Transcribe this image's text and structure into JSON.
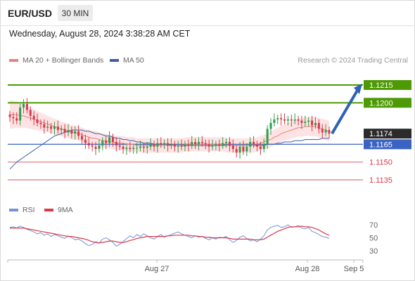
{
  "header": {
    "symbol": "EUR/USD",
    "timeframe": "30 MIN",
    "datetime": "Wednesday, August 28, 2024 3:38:28 AM CET"
  },
  "legend": {
    "ma20_label": "MA 20 + Bollinger Bands",
    "ma50_label": "MA 50",
    "credit": "Research © 2024 Trading Central"
  },
  "rsi_legend": {
    "rsi_label": "RSI",
    "ma_label": "9MA"
  },
  "colors": {
    "bullish": "#2f9e4a",
    "bearish": "#d9394a",
    "ma20": "#e8807f",
    "bollinger_fill": "#fde3e3",
    "ma50": "#3a5ea8",
    "green_level": "#4e9a06",
    "blue_level": "#3a63c4",
    "red_level": "#e57373",
    "current": "#2b2b2b",
    "arrow": "#2e62b3",
    "rsi": "#7592d6",
    "rsi_ma": "#d9394a"
  },
  "chart_data": {
    "type": "candlestick",
    "symbol": "EUR/USD",
    "timeframe": "30 MIN",
    "x_ticks": [
      "Aug 27",
      "Aug 28",
      "Sep 5"
    ],
    "price_levels": [
      {
        "price": 1.1215,
        "label": "1.1215",
        "kind": "resistance",
        "style": "green"
      },
      {
        "price": 1.12,
        "label": "1.1200",
        "kind": "resistance",
        "style": "green"
      },
      {
        "price": 1.1174,
        "label": "1.1174",
        "kind": "current",
        "style": "dark"
      },
      {
        "price": 1.1165,
        "label": "1.1165",
        "kind": "pivot",
        "style": "blue"
      },
      {
        "price": 1.115,
        "label": "1.1150",
        "kind": "support",
        "style": "red"
      },
      {
        "price": 1.1135,
        "label": "1.1135",
        "kind": "support",
        "style": "red"
      }
    ],
    "candles_close": [
      1.1188,
      1.1187,
      1.1185,
      1.1196,
      1.1199,
      1.1194,
      1.1189,
      1.1186,
      1.1183,
      1.1182,
      1.1179,
      1.118,
      1.1178,
      1.118,
      1.1177,
      1.1178,
      1.1175,
      1.1177,
      1.1174,
      1.1176,
      1.1172,
      1.1169,
      1.1166,
      1.1164,
      1.1163,
      1.1161,
      1.1164,
      1.1168,
      1.1166,
      1.1171,
      1.1167,
      1.1164,
      1.1163,
      1.1161,
      1.1162,
      1.1161,
      1.1162,
      1.1162,
      1.1163,
      1.1162,
      1.1163,
      1.1165,
      1.1163,
      1.1166,
      1.1165,
      1.1166,
      1.1164,
      1.1165,
      1.1163,
      1.1164,
      1.1163,
      1.1165,
      1.1164,
      1.1167,
      1.1165,
      1.1167,
      1.1166,
      1.1165,
      1.1163,
      1.1164,
      1.1165,
      1.1164,
      1.1166,
      1.1167,
      1.1164,
      1.1161,
      1.1158,
      1.1163,
      1.1159,
      1.1163,
      1.1167,
      1.1165,
      1.1163,
      1.1161,
      1.1165,
      1.1178,
      1.1183,
      1.1186,
      1.1187,
      1.1186,
      1.1185,
      1.1186,
      1.1185,
      1.1186,
      1.1185,
      1.1183,
      1.1184,
      1.1185,
      1.1181,
      1.1183,
      1.1178,
      1.1175,
      1.1177,
      1.1174
    ],
    "ma20": [
      1.119,
      1.119,
      1.119,
      1.1189,
      1.1189,
      1.1188,
      1.1187,
      1.1186,
      1.1185,
      1.1184,
      1.1183,
      1.1182,
      1.1181,
      1.118,
      1.1179,
      1.1178,
      1.1177,
      1.1176,
      1.1175,
      1.1175,
      1.1174,
      1.1173,
      1.1172,
      1.1171,
      1.117,
      1.117,
      1.1169,
      1.1168,
      1.1168,
      1.1167,
      1.1167,
      1.1166,
      1.1166,
      1.1166,
      1.1165,
      1.1165,
      1.1165,
      1.1164,
      1.1164,
      1.1164,
      1.1164,
      1.1164,
      1.1164,
      1.1164,
      1.1164,
      1.1164,
      1.1164,
      1.1164,
      1.1164,
      1.1164,
      1.1164,
      1.1165,
      1.1165,
      1.1165,
      1.1165,
      1.1165,
      1.1165,
      1.1165,
      1.1165,
      1.1165,
      1.1165,
      1.1165,
      1.1165,
      1.1164,
      1.1164,
      1.1164,
      1.1164,
      1.1164,
      1.1164,
      1.1164,
      1.1164,
      1.1164,
      1.1165,
      1.1166,
      1.1167,
      1.1168,
      1.1169,
      1.1171,
      1.1172,
      1.1174,
      1.1175,
      1.1176,
      1.1177,
      1.1178,
      1.1179,
      1.1179,
      1.118,
      1.118,
      1.118,
      1.118,
      1.1179,
      1.1178,
      1.1177,
      1.1176
    ],
    "ma50": [
      1.1144,
      1.1147,
      1.115,
      1.1152,
      1.1154,
      1.1156,
      1.1158,
      1.116,
      1.1162,
      1.1164,
      1.1166,
      1.1168,
      1.117,
      1.1172,
      1.1173,
      1.1174,
      1.1175,
      1.1176,
      1.1177,
      1.1177,
      1.1177,
      1.1177,
      1.1176,
      1.1176,
      1.1175,
      1.1174,
      1.1174,
      1.1173,
      1.1172,
      1.1172,
      1.1171,
      1.117,
      1.117,
      1.1169,
      1.1169,
      1.1168,
      1.1168,
      1.1167,
      1.1167,
      1.1166,
      1.1166,
      1.1166,
      1.1165,
      1.1165,
      1.1165,
      1.1165,
      1.1165,
      1.1164,
      1.1164,
      1.1164,
      1.1164,
      1.1164,
      1.1164,
      1.1164,
      1.1164,
      1.1164,
      1.1164,
      1.1164,
      1.1164,
      1.1164,
      1.1164,
      1.1164,
      1.1164,
      1.1164,
      1.1164,
      1.1164,
      1.1164,
      1.1164,
      1.1164,
      1.1164,
      1.1164,
      1.1164,
      1.1164,
      1.1164,
      1.1164,
      1.1165,
      1.1165,
      1.1165,
      1.1166,
      1.1166,
      1.1167,
      1.1167,
      1.1167,
      1.1168,
      1.1168,
      1.1168,
      1.1169,
      1.1169,
      1.1169,
      1.1169,
      1.1169,
      1.117,
      1.117,
      1.117
    ],
    "y_range": [
      1.1125,
      1.1225
    ],
    "target_arrow": {
      "from": 1.1174,
      "to": 1.1215
    },
    "rsi": {
      "ticks": [
        70,
        50,
        30
      ],
      "range": [
        22,
        78
      ],
      "rsi_values": [
        66,
        67,
        65,
        68,
        66,
        63,
        61,
        59,
        56,
        58,
        54,
        56,
        52,
        55,
        53,
        51,
        49,
        53,
        50,
        47,
        48,
        45,
        41,
        38,
        40,
        44,
        42,
        48,
        50,
        47,
        43,
        37,
        40,
        44,
        49,
        53,
        50,
        55,
        52,
        56,
        53,
        50,
        48,
        52,
        55,
        51,
        53,
        55,
        57,
        59,
        56,
        54,
        52,
        50,
        53,
        51,
        52,
        49,
        47,
        50,
        48,
        51,
        50,
        52,
        47,
        43,
        46,
        51,
        53,
        49,
        45,
        47,
        44,
        48,
        53,
        62,
        66,
        68,
        69,
        66,
        67,
        70,
        66,
        67,
        69,
        65,
        64,
        66,
        60,
        58,
        55,
        52,
        51,
        49
      ],
      "ma9_values": [
        65,
        65,
        65,
        65,
        65,
        64,
        63,
        62,
        61,
        60,
        59,
        58,
        57,
        56,
        55,
        54,
        53,
        52,
        52,
        51,
        50,
        49,
        48,
        46,
        44,
        43,
        42,
        43,
        44,
        45,
        45,
        44,
        43,
        43,
        44,
        46,
        47,
        49,
        50,
        51,
        52,
        52,
        52,
        52,
        52,
        52,
        53,
        53,
        54,
        54,
        54,
        54,
        54,
        53,
        53,
        52,
        52,
        51,
        51,
        50,
        50,
        50,
        50,
        50,
        49,
        48,
        48,
        48,
        48,
        48,
        48,
        47,
        47,
        47,
        48,
        51,
        54,
        57,
        60,
        62,
        64,
        66,
        67,
        67,
        67,
        68,
        67,
        67,
        66,
        64,
        62,
        59,
        56,
        54
      ]
    }
  }
}
